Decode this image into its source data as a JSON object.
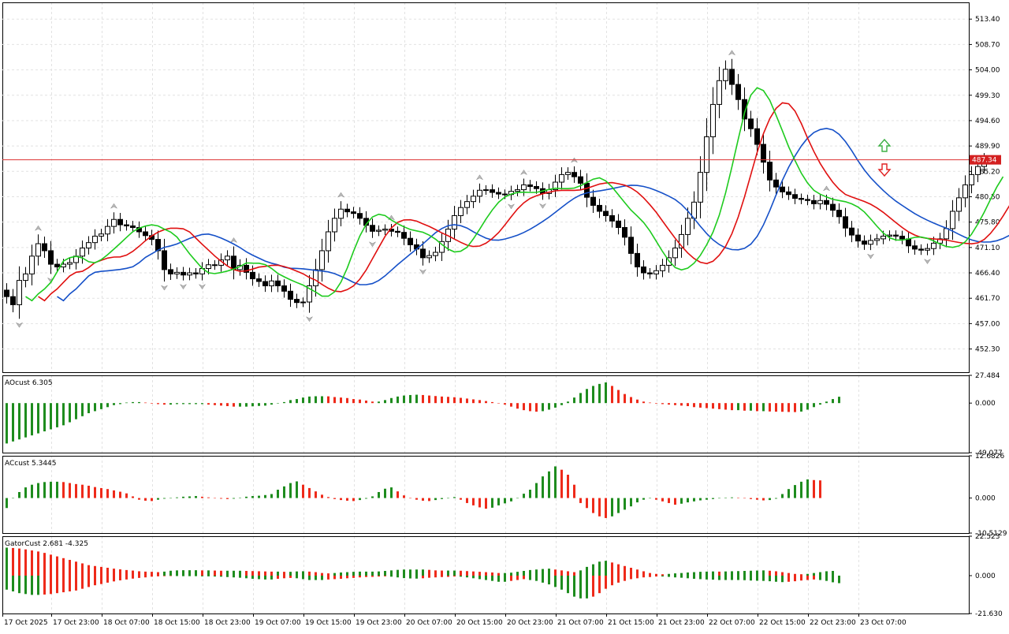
{
  "chart_data": [
    {
      "type": "candlestick",
      "panel": "price",
      "current_price_label": "487.34",
      "y_ticks": [
        "513.40",
        "508.70",
        "504.00",
        "499.30",
        "494.60",
        "489.90",
        "485.20",
        "480.50",
        "475.80",
        "471.10",
        "466.40",
        "461.70",
        "457.00",
        "452.30"
      ],
      "ylim": [
        448.0,
        516.5
      ],
      "x_ticks": [
        "17 Oct 2025",
        "17 Oct 23:00",
        "18 Oct 07:00",
        "18 Oct 15:00",
        "18 Oct 23:00",
        "19 Oct 07:00",
        "19 Oct 15:00",
        "19 Oct 23:00",
        "20 Oct 07:00",
        "20 Oct 15:00",
        "20 Oct 23:00",
        "21 Oct 07:00",
        "21 Oct 15:00",
        "21 Oct 23:00",
        "22 Oct 07:00",
        "22 Oct 15:00",
        "22 Oct 23:00",
        "23 Oct 07:00"
      ],
      "ohlc_close": [
        462.0,
        460.5,
        465.0,
        466.2,
        469.5,
        471.8,
        470.5,
        468.0,
        467.5,
        468.0,
        468.3,
        469.5,
        471.0,
        472.0,
        473.2,
        473.6,
        475.0,
        476.3,
        475.3,
        475.1,
        474.8,
        474.0,
        473.3,
        472.6,
        470.5,
        467.0,
        466.2,
        466.5,
        466.0,
        466.4,
        466.2,
        467.2,
        467.9,
        467.8,
        468.8,
        469.5,
        467.0,
        467.8,
        466.5,
        465.3,
        464.8,
        464.0,
        464.9,
        464.0,
        463.0,
        461.5,
        460.9,
        461.0,
        464.0,
        467.0,
        470.5,
        474.0,
        476.5,
        478.2,
        477.7,
        477.4,
        476.5,
        475.2,
        474.1,
        474.3,
        474.5,
        474.1,
        473.9,
        472.8,
        471.6,
        470.8,
        469.2,
        469.6,
        470.2,
        472.2,
        474.5,
        477.0,
        478.5,
        479.6,
        480.6,
        481.7,
        481.8,
        481.3,
        481.0,
        480.9,
        481.5,
        481.8,
        482.7,
        482.4,
        482.0,
        481.1,
        481.8,
        483.2,
        484.6,
        485.0,
        484.2,
        483.0,
        480.4,
        478.9,
        477.8,
        477.0,
        476.0,
        474.8,
        473.0,
        470.0,
        467.5,
        466.4,
        466.2,
        466.8,
        467.8,
        469.2,
        471.0,
        473.5,
        476.5,
        479.5,
        485.0,
        491.6,
        497.6,
        502.0,
        504.1,
        501.3,
        498.5,
        494.9,
        493.1,
        490.2,
        486.9,
        483.6,
        482.3,
        481.4,
        480.9,
        480.2,
        480.0,
        479.8,
        479.2,
        479.8,
        479.1,
        478.0,
        476.8,
        474.7,
        473.4,
        472.3,
        471.7,
        472.4,
        472.7,
        473.2,
        473.4,
        473.2,
        472.7,
        471.4,
        470.8,
        470.6,
        470.9,
        471.9,
        472.7,
        474.6,
        477.8,
        480.3,
        482.7,
        484.6,
        486.1,
        487.3
      ],
      "overlays": [
        {
          "name": "Slow MA",
          "color": "#1550c8"
        },
        {
          "name": "Medium MA",
          "color": "#e01010"
        },
        {
          "name": "Fast MA",
          "color": "#1ecb1e"
        }
      ],
      "signal_arrows": [
        {
          "dir": "up",
          "color": "#3cb043"
        },
        {
          "dir": "down",
          "color": "#e02020"
        }
      ]
    },
    {
      "type": "bar",
      "panel": "AOcust",
      "label": "AOcust 6.305",
      "y_ticks": [
        "27.484",
        "0.000",
        "-49.077"
      ],
      "ylim": [
        -49.077,
        27.484
      ],
      "up_color": "#1e8c1e",
      "down_color": "#ee2a1a",
      "values": [
        -40,
        -38,
        -36,
        -34,
        -32,
        -30,
        -28,
        -26,
        -24,
        -22,
        -19,
        -16,
        -13,
        -10,
        -8,
        -6,
        -4,
        -2,
        -1,
        0.5,
        1,
        1,
        0.5,
        -0.5,
        -1,
        -1.5,
        -1.5,
        -1,
        -1,
        -1,
        -1,
        -1,
        -1.5,
        -2,
        -2.5,
        -3,
        -3.5,
        -3.5,
        -3.5,
        -3.2,
        -2.8,
        -2.5,
        -1.5,
        0,
        1,
        3,
        4,
        5.5,
        6.5,
        6.8,
        6.8,
        6.7,
        6,
        5.5,
        5,
        4,
        3.5,
        2.5,
        1.5,
        1.5,
        3,
        5,
        6.5,
        7.5,
        8,
        8.3,
        8,
        7.5,
        7,
        6.5,
        6.2,
        5.8,
        5.2,
        4.5,
        3.7,
        3,
        2,
        1,
        0,
        -1.5,
        -3.5,
        -5.5,
        -7,
        -8,
        -8.5,
        -8,
        -6.5,
        -4.5,
        -2,
        1.5,
        5.5,
        10,
        14,
        17,
        19,
        20.5,
        17,
        13,
        9,
        6,
        3.5,
        1.5,
        0.5,
        -0.5,
        -1,
        -1.5,
        -2,
        -2.5,
        -3,
        -4,
        -4.5,
        -5,
        -5.5,
        -6,
        -6.5,
        -7,
        -7,
        -7.5,
        -7.5,
        -8,
        -8,
        -8.3,
        -8.5,
        -8.6,
        -8.8,
        -8.9,
        -8.4,
        -6.5,
        -4,
        -1.5,
        1.5,
        4,
        6.3
      ]
    },
    {
      "type": "bar",
      "panel": "ACcust",
      "label": "ACcust 5.3445",
      "y_ticks": [
        "12.6826",
        "0.000",
        "-10.5129"
      ],
      "ylim": [
        -10.5129,
        12.6826
      ],
      "up_color": "#1e8c1e",
      "down_color": "#ee2a1a",
      "values": [
        -3,
        0,
        1.8,
        3.2,
        4,
        4.5,
        4.8,
        4.9,
        4.9,
        4.8,
        4.5,
        4.2,
        4,
        3.7,
        3.3,
        3,
        2.7,
        2.3,
        1.9,
        1.4,
        0.5,
        -0.5,
        -0.8,
        -0.9,
        -0.5,
        -0.2,
        0,
        0.2,
        0.4,
        0.5,
        0.6,
        0.4,
        0.2,
        0,
        -0.2,
        -0.3,
        -0.2,
        0.1,
        0.4,
        0.6,
        0.7,
        0.9,
        1.2,
        2.5,
        3.5,
        4.5,
        5,
        4,
        3,
        2,
        1,
        0.3,
        -0.3,
        -0.6,
        -0.8,
        -0.9,
        -0.6,
        -0.2,
        0.5,
        1.8,
        2.8,
        3.2,
        2,
        0.8,
        0,
        -0.5,
        -0.8,
        -0.9,
        -0.6,
        -0.3,
        0,
        0.3,
        -0.5,
        -1.5,
        -2.2,
        -2.8,
        -3.2,
        -2.9,
        -2.2,
        -1.6,
        -1,
        0,
        1.3,
        2.5,
        4.5,
        6.5,
        8,
        9.5,
        8.5,
        7,
        4,
        -1.5,
        -3,
        -4.5,
        -5.5,
        -6,
        -5.5,
        -4.5,
        -3.5,
        -2.5,
        -1.3,
        -0.5,
        0,
        -0.5,
        -1,
        -1.5,
        -2,
        -1.7,
        -1.3,
        -1,
        -0.7,
        -0.5,
        -0.3,
        -0.1,
        0.1,
        0.2,
        0.1,
        -0.1,
        -0.3,
        -0.5,
        -0.7,
        -0.6,
        -0.2,
        1.2,
        2.7,
        3.9,
        4.9,
        5.6,
        5.4,
        5.3
      ]
    },
    {
      "type": "bar",
      "panel": "GatorCust",
      "label": "GatorCust 2.681 -4.325",
      "y_ticks": [
        "22.523",
        "0.000",
        "-21.630"
      ],
      "ylim": [
        -21.63,
        22.523
      ],
      "up_color": "#1e8c1e",
      "down_color": "#ee2a1a",
      "upper_values": [
        16,
        15.8,
        15.5,
        15,
        14.4,
        13.8,
        13,
        12,
        11,
        10,
        9,
        8,
        7,
        6,
        5.5,
        5,
        4.5,
        4,
        3.6,
        3.2,
        2.9,
        2.5,
        2.3,
        2.2,
        2,
        2.3,
        2.8,
        3,
        3.1,
        3.1,
        3.1,
        3,
        3,
        2.9,
        2.8,
        2.8,
        2.8,
        2.8,
        2.7,
        2.6,
        2.5,
        2.4,
        2.3,
        2.3,
        2.2,
        2.2,
        2.4,
        2.5,
        2.3,
        2,
        1.5,
        1.3,
        1.5,
        1.8,
        2,
        2.2,
        2.3,
        2.3,
        2.3,
        2.4,
        2.7,
        3,
        3.3,
        3.5,
        3.5,
        3.5,
        3.5,
        3.3,
        3,
        2.9,
        2.9,
        2.9,
        2.8,
        2.6,
        2.4,
        2.2,
        2,
        1.8,
        1.5,
        1.5,
        1.7,
        2.2,
        2.7,
        3.2,
        3.5,
        3.8,
        4,
        3.5,
        3,
        2.5,
        2,
        3,
        5,
        6.5,
        8,
        8.5,
        7.5,
        6.5,
        5.5,
        4.5,
        3.5,
        2.5,
        1.5,
        1,
        0.8,
        1,
        1.3,
        1.5,
        1.8,
        2,
        2.2,
        2.3,
        2.4,
        2.3,
        2.4,
        2.5,
        2.6,
        2.7,
        2.8,
        2.9,
        3,
        2.8,
        2.5,
        2,
        1.5,
        1,
        0.8,
        1,
        1.5,
        2,
        2.5,
        2.7
      ],
      "lower_values": [
        -8,
        -9,
        -10,
        -10.5,
        -11,
        -11,
        -10.8,
        -10.5,
        -10,
        -9.5,
        -9,
        -8.5,
        -7.5,
        -6.5,
        -5.5,
        -4.8,
        -4,
        -3.3,
        -2.7,
        -2.2,
        -1.7,
        -1.3,
        -1,
        -0.6,
        -0.4,
        -0.3,
        -0.2,
        -0.2,
        -0.3,
        -0.3,
        -0.3,
        -0.4,
        -0.4,
        -0.5,
        -0.6,
        -0.8,
        -1,
        -1.2,
        -1.5,
        -1.8,
        -2,
        -2.2,
        -2.2,
        -1.8,
        -1.5,
        -1.3,
        -1.5,
        -2,
        -2.5,
        -2.5,
        -2.5,
        -2.2,
        -2,
        -1.8,
        -1.5,
        -1.3,
        -1,
        -0.8,
        -0.7,
        -0.5,
        -0.4,
        -0.6,
        -1,
        -1.4,
        -1.6,
        -1.7,
        -1.5,
        -1.2,
        -1,
        -0.8,
        -0.7,
        -0.5,
        -0.6,
        -1,
        -1.5,
        -2,
        -2.5,
        -3,
        -3.5,
        -3.5,
        -3,
        -2.5,
        -2,
        -2.5,
        -3,
        -4,
        -5,
        -6.5,
        -8,
        -10,
        -12,
        -13,
        -13,
        -12,
        -10,
        -7.5,
        -5.5,
        -4,
        -3,
        -2,
        -1.5,
        -1,
        -0.8,
        -0.5,
        -0.5,
        -0.7,
        -1,
        -1.2,
        -1.5,
        -1.8,
        -2,
        -2.2,
        -2.3,
        -2.5,
        -2.5,
        -2.5,
        -2.5,
        -2.6,
        -2.8,
        -2.9,
        -3,
        -3.2,
        -3.5,
        -3.7,
        -3.5,
        -3.2,
        -2.8,
        -2.5,
        -2.2,
        -2.5,
        -3,
        -3.8,
        -4.3
      ]
    }
  ]
}
